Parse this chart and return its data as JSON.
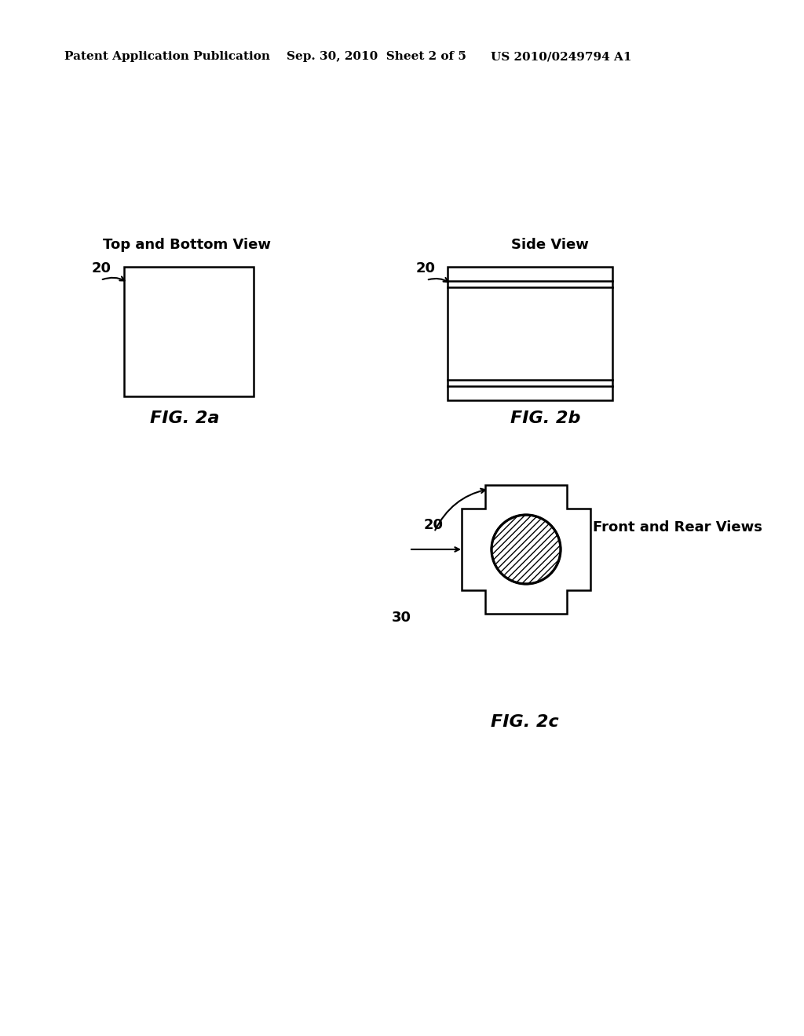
{
  "background_color": "#ffffff",
  "header_left": "Patent Application Publication",
  "header_center": "Sep. 30, 2010  Sheet 2 of 5",
  "header_right": "US 2010/0249794 A1",
  "header_fontsize": 11,
  "fig2a_title": "Top and Bottom View",
  "fig2a_label": "FIG. 2a",
  "fig2a_ref": "20",
  "fig2b_title": "Side View",
  "fig2b_label": "FIG. 2b",
  "fig2b_ref": "20",
  "fig2c_title": "Front and Rear Views",
  "fig2c_label": "FIG. 2c",
  "fig2c_ref": "20",
  "fig2c_ref2": "30",
  "line_color": "#000000",
  "line_width": 1.8
}
